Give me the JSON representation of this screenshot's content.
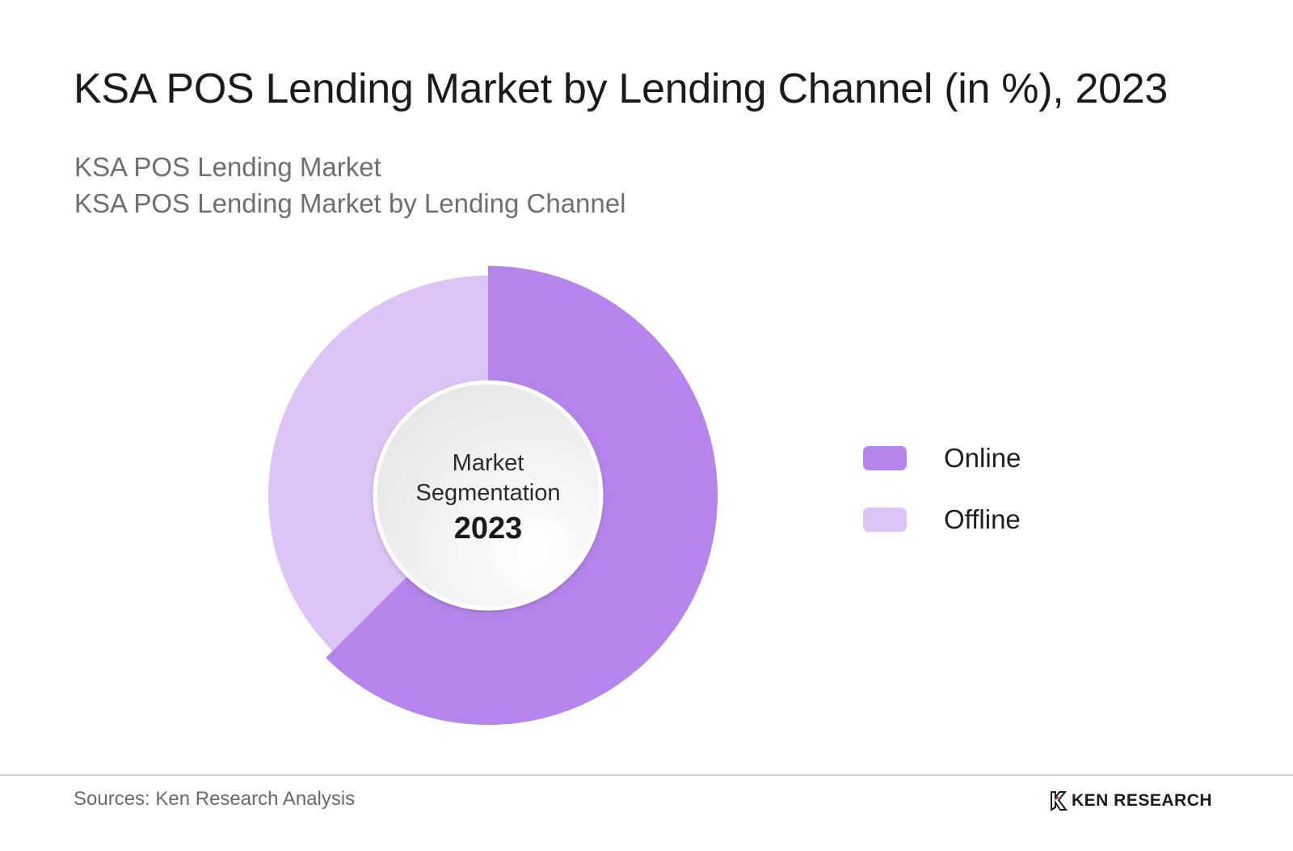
{
  "title": "KSA POS Lending Market by Lending Channel (in %), 2023",
  "subtitle_1": "KSA POS Lending Market",
  "subtitle_2": "KSA POS Lending Market by Lending Channel",
  "center": {
    "line1": "Market",
    "line2": "Segmentation",
    "year": "2023"
  },
  "chart_data": {
    "type": "pie",
    "title": "KSA POS Lending Market by Lending Channel (in %), 2023",
    "categories": [
      "Online",
      "Offline"
    ],
    "values": [
      62.5,
      37.5
    ],
    "colors": [
      "#b585ec",
      "#dcc4f7"
    ],
    "legend": "right"
  },
  "legend": {
    "items": [
      {
        "label": "Online",
        "color": "#b585ec"
      },
      {
        "label": "Offline",
        "color": "#dcc4f7"
      }
    ]
  },
  "footer": {
    "source": "Sources: Ken Research Analysis",
    "brand": "KEN RESEARCH"
  }
}
